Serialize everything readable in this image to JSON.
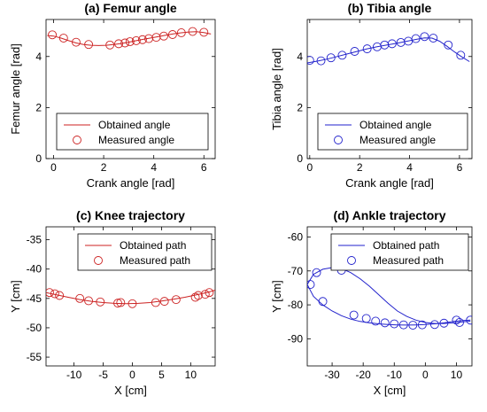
{
  "chart_data": [
    {
      "type": "line",
      "title": "(a) Femur angle",
      "xlabel": "Crank angle [rad]",
      "ylabel": "Femur angle [rad]",
      "xlim": [
        -0.3,
        6.45
      ],
      "ylim": [
        0,
        5.45
      ],
      "xticks": [
        0,
        2,
        4,
        6
      ],
      "yticks": [
        0,
        2,
        4
      ],
      "color": "#cc2222",
      "legend": "bottom-right",
      "series": [
        {
          "name": "Obtained angle",
          "style": "line",
          "x": [
            -0.25,
            0,
            0.3,
            0.6,
            0.9,
            1.2,
            1.5,
            1.8,
            2.1,
            2.4,
            2.7,
            3.0,
            3.3,
            3.6,
            3.9,
            4.2,
            4.5,
            4.8,
            5.1,
            5.4,
            5.7,
            6.0,
            6.28
          ],
          "y": [
            4.82,
            4.8,
            4.72,
            4.62,
            4.53,
            4.47,
            4.44,
            4.43,
            4.44,
            4.47,
            4.51,
            4.56,
            4.62,
            4.68,
            4.73,
            4.78,
            4.84,
            4.89,
            4.93,
            4.96,
            4.97,
            4.94,
            4.88
          ]
        },
        {
          "name": "Measured angle",
          "style": "markers",
          "x": [
            -0.05,
            0.4,
            0.9,
            1.4,
            2.25,
            2.6,
            2.85,
            3.05,
            3.3,
            3.55,
            3.8,
            4.1,
            4.4,
            4.75,
            5.1,
            5.55,
            6.0
          ],
          "y": [
            4.85,
            4.72,
            4.56,
            4.47,
            4.45,
            4.5,
            4.53,
            4.58,
            4.62,
            4.66,
            4.7,
            4.75,
            4.8,
            4.86,
            4.93,
            4.98,
            4.95
          ]
        }
      ]
    },
    {
      "type": "line",
      "title": "(b) Tibia angle",
      "xlabel": "Crank angle [rad]",
      "ylabel": "Tibia angle [rad]",
      "xlim": [
        -0.1,
        6.5
      ],
      "ylim": [
        0,
        5.45
      ],
      "xticks": [
        0,
        2,
        4,
        6
      ],
      "yticks": [
        0,
        2,
        4
      ],
      "color": "#2222cc",
      "legend": "bottom-right",
      "series": [
        {
          "name": "Obtained angle",
          "style": "line",
          "x": [
            -0.1,
            0.3,
            0.7,
            1.1,
            1.5,
            1.9,
            2.3,
            2.7,
            3.1,
            3.5,
            3.9,
            4.3,
            4.6,
            4.9,
            5.2,
            5.5,
            5.8,
            6.1,
            6.4
          ],
          "y": [
            3.75,
            3.82,
            3.9,
            4.0,
            4.1,
            4.2,
            4.3,
            4.38,
            4.45,
            4.52,
            4.6,
            4.68,
            4.73,
            4.72,
            4.6,
            4.4,
            4.18,
            3.98,
            3.8
          ]
        },
        {
          "name": "Measured angle",
          "style": "markers",
          "x": [
            0,
            0.45,
            0.85,
            1.3,
            1.8,
            2.3,
            2.7,
            3.0,
            3.3,
            3.65,
            3.95,
            4.25,
            4.6,
            4.95,
            5.55,
            6.05
          ],
          "y": [
            3.85,
            3.83,
            3.95,
            4.05,
            4.2,
            4.3,
            4.38,
            4.45,
            4.5,
            4.55,
            4.6,
            4.7,
            4.78,
            4.72,
            4.45,
            4.05
          ]
        }
      ]
    },
    {
      "type": "line",
      "title": "(c) Knee trajectory",
      "xlabel": "X [cm]",
      "ylabel": "Y [cm]",
      "xlim": [
        -14.8,
        14.2
      ],
      "ylim": [
        -56.5,
        -32.8
      ],
      "xticks": [
        -10,
        -5,
        0,
        5,
        10
      ],
      "yticks": [
        -35,
        -40,
        -45,
        -50,
        -55
      ],
      "color": "#cc2222",
      "legend": "top-right",
      "series": [
        {
          "name": "Obtained path",
          "style": "line",
          "x": [
            -14.8,
            -13,
            -11,
            -9,
            -7,
            -5,
            -3,
            -1,
            1,
            3,
            5,
            7,
            9,
            11,
            13,
            14.2
          ],
          "y": [
            -44.0,
            -44.4,
            -44.8,
            -45.2,
            -45.5,
            -45.7,
            -45.85,
            -45.9,
            -45.85,
            -45.7,
            -45.45,
            -45.15,
            -44.8,
            -44.4,
            -43.95,
            -43.6
          ]
        },
        {
          "name": "Measured path",
          "style": "markers",
          "x": [
            -14.2,
            -13.3,
            -12.5,
            -9,
            -7.5,
            -5.5,
            -2.5,
            -2,
            0,
            4,
            5.5,
            7.5,
            10.8,
            11.3,
            12.5,
            13.2
          ],
          "y": [
            -44.0,
            -44.2,
            -44.5,
            -45.0,
            -45.4,
            -45.6,
            -45.8,
            -45.7,
            -45.9,
            -45.7,
            -45.5,
            -45.2,
            -44.8,
            -44.5,
            -44.3,
            -44.0
          ]
        }
      ]
    },
    {
      "type": "line",
      "title": "(d) Ankle trajectory",
      "xlabel": "X [cm]",
      "ylabel": "Y [cm]",
      "xlim": [
        -38,
        15
      ],
      "ylim": [
        -98,
        -57
      ],
      "xticks": [
        -30,
        -20,
        -10,
        0,
        10
      ],
      "yticks": [
        -60,
        -70,
        -80,
        -90
      ],
      "color": "#2222cc",
      "legend": "top-right",
      "series": [
        {
          "name": "Obtained path",
          "style": "line",
          "x": [
            -38,
            -36,
            -33,
            -30,
            -27,
            -24,
            -21,
            -18,
            -15,
            -12,
            -9,
            -6,
            -3,
            0,
            3,
            6,
            9,
            12,
            14.5
          ],
          "y": [
            -74,
            -71,
            -69.5,
            -69,
            -69.3,
            -70.5,
            -72.3,
            -74.5,
            -77,
            -79.5,
            -81.8,
            -83.4,
            -84.5,
            -85.2,
            -85.5,
            -85.5,
            -85.3,
            -85,
            -84.8
          ]
        },
        {
          "name": "Obtained path",
          "style": "line",
          "x": [
            -38,
            -36,
            -33,
            -30,
            -27,
            -24,
            -21,
            -18,
            -15,
            -12,
            -9,
            -6,
            -3,
            0,
            3,
            6,
            9,
            12,
            14.5
          ],
          "y": [
            -74,
            -77.5,
            -80,
            -81.8,
            -83.2,
            -84.2,
            -84.9,
            -85.3,
            -85.6,
            -85.8,
            -85.9,
            -85.95,
            -85.9,
            -85.8,
            -85.6,
            -85.3,
            -84.9,
            -84.6,
            -84.5
          ]
        },
        {
          "name": "Measured path",
          "style": "markers",
          "x": [
            -37,
            -35,
            -33,
            -27,
            -23,
            -19,
            -16,
            -13,
            -10,
            -7,
            -4,
            -1,
            3,
            6,
            10,
            11,
            14.5
          ],
          "y": [
            -74,
            -70.5,
            -79,
            -69.8,
            -83,
            -84,
            -84.8,
            -85.3,
            -85.6,
            -85.9,
            -86,
            -85.9,
            -85.8,
            -85.4,
            -84.5,
            -85.2,
            -84.5
          ]
        }
      ]
    }
  ]
}
